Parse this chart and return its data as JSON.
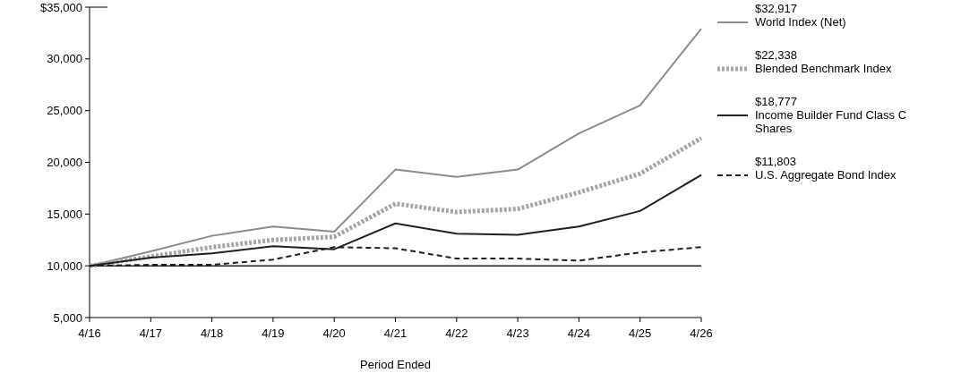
{
  "chart_data": {
    "type": "line",
    "xlabel": "Period Ended",
    "categories": [
      "4/16",
      "4/17",
      "4/18",
      "4/19",
      "4/20",
      "4/21",
      "4/22",
      "4/23",
      "4/24",
      "4/25",
      "4/26"
    ],
    "series": [
      {
        "name": "World Index (Net)",
        "color": "#8c8c8c",
        "line_style": "solid",
        "values": [
          10000,
          11400,
          12900,
          13800,
          13300,
          19300,
          18600,
          19300,
          22800,
          25500,
          32917
        ]
      },
      {
        "name": "Blended Benchmark Index",
        "color": "#a6a6a6",
        "line_style": "dotted",
        "values": [
          10000,
          10900,
          11800,
          12500,
          12800,
          16000,
          15200,
          15500,
          17100,
          18900,
          22338
        ]
      },
      {
        "name": "Income Builder Fund Class C Shares",
        "color": "#231f20",
        "line_style": "solid",
        "values": [
          10000,
          10800,
          11200,
          11900,
          11600,
          14100,
          13100,
          13000,
          13800,
          15300,
          18777
        ]
      },
      {
        "name": "U.S. Aggregate Bond Index",
        "color": "#231f20",
        "line_style": "dashed",
        "values": [
          10000,
          10100,
          10100,
          10600,
          11800,
          11700,
          10700,
          10700,
          10500,
          11300,
          11803
        ]
      }
    ],
    "ylim": [
      5000,
      35000
    ],
    "yticks": [
      {
        "value": 5000,
        "label": "5,000"
      },
      {
        "value": 10000,
        "label": "10,000"
      },
      {
        "value": 15000,
        "label": "15,000"
      },
      {
        "value": 20000,
        "label": "20,000"
      },
      {
        "value": 25000,
        "label": "25,000"
      },
      {
        "value": 30000,
        "label": "30,000"
      },
      {
        "value": 35000,
        "label": "$35,000"
      }
    ],
    "ref_lines": [
      {
        "axis": "y",
        "value": 10000,
        "color": "#231f20"
      }
    ],
    "annotations": [
      "$32,917",
      "$22,338",
      "$18,777",
      "$11,803"
    ],
    "legend": "right",
    "grid": false,
    "marker": "none"
  }
}
